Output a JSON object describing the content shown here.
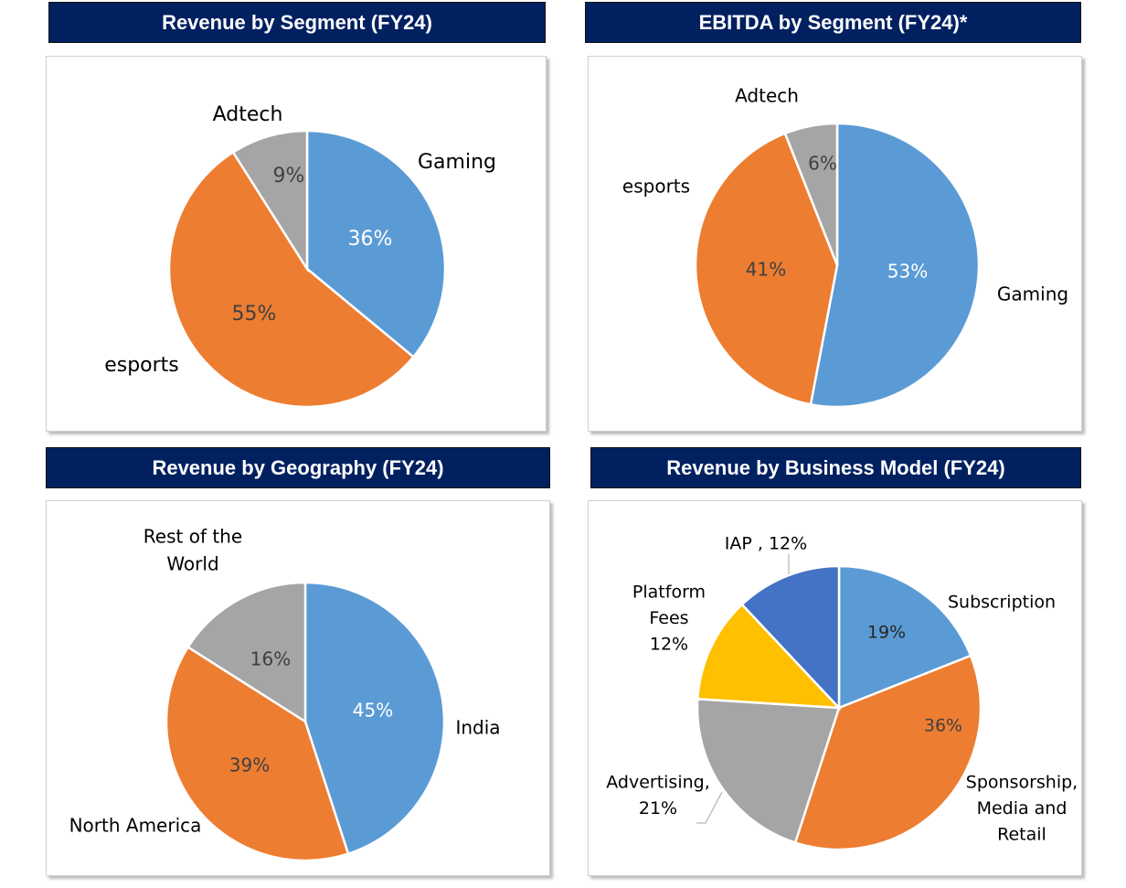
{
  "chart_data": [
    {
      "type": "pie",
      "title": "Revenue by Segment (FY24)",
      "categories": [
        "Gaming",
        "esports",
        "Adtech"
      ],
      "values": [
        36,
        55,
        9
      ],
      "value_labels": [
        "36%",
        "55%",
        "9%"
      ],
      "colors": [
        "#5B9BD5",
        "#ED7D31",
        "#A5A5A5"
      ],
      "start": "12 o'clock, clockwise"
    },
    {
      "type": "pie",
      "title": "EBITDA by Segment (FY24)*",
      "categories": [
        "Gaming",
        "esports",
        "Adtech"
      ],
      "values": [
        53,
        41,
        6
      ],
      "value_labels": [
        "53%",
        "41%",
        "6%"
      ],
      "colors": [
        "#5B9BD5",
        "#ED7D31",
        "#A5A5A5"
      ],
      "start": "12 o'clock, clockwise"
    },
    {
      "type": "pie",
      "title": "Revenue by Geography (FY24)",
      "categories": [
        "India",
        "North America",
        "Rest of the World"
      ],
      "category_label_lines": [
        [
          "India"
        ],
        [
          "North America"
        ],
        [
          "Rest of the",
          "World"
        ]
      ],
      "values": [
        45,
        39,
        16
      ],
      "value_labels": [
        "45%",
        "39%",
        "16%"
      ],
      "colors": [
        "#5B9BD5",
        "#ED7D31",
        "#A5A5A5"
      ],
      "start": "12 o'clock, clockwise"
    },
    {
      "type": "pie",
      "title": "Revenue by Business Model (FY24)",
      "categories": [
        "Subscription",
        "Sponsorship, Media and Retail",
        "Advertising",
        "Platform Fees",
        "IAP"
      ],
      "category_label_lines": [
        [
          "Subscription"
        ],
        [
          "Sponsorship,",
          "Media and",
          "Retail"
        ],
        [
          "Advertising,",
          "21%"
        ],
        [
          "Platform",
          "Fees",
          "12%"
        ],
        [
          "IAP , 12%"
        ]
      ],
      "values": [
        19,
        36,
        21,
        12,
        12
      ],
      "value_labels": [
        "19%",
        "36%",
        "",
        "",
        ""
      ],
      "colors": [
        "#5B9BD5",
        "#ED7D31",
        "#A5A5A5",
        "#FFC000",
        "#4472C4"
      ],
      "start": "12 o'clock, clockwise"
    }
  ]
}
